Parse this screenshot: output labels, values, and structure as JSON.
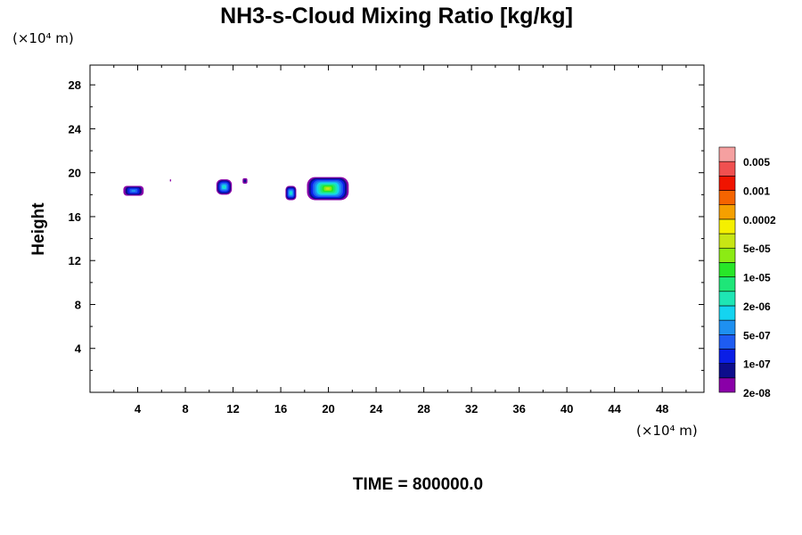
{
  "chart_data": {
    "type": "heatmap",
    "title": "NH3-s-Cloud Mixing Ratio [kg/kg]",
    "ylabel": "Height",
    "xlabel": "",
    "x_unit": "(×10⁴ m)",
    "y_unit": "(×10⁴ m)",
    "xlim": [
      0,
      51.5
    ],
    "ylim": [
      0,
      29.8
    ],
    "x_ticks": [
      4,
      8,
      12,
      16,
      20,
      24,
      28,
      32,
      36,
      40,
      44,
      48
    ],
    "y_ticks": [
      4,
      8,
      12,
      16,
      20,
      24,
      28
    ],
    "colorbar": {
      "labels": [
        "0.005",
        "0.001",
        "0.0002",
        "5e-05",
        "1e-05",
        "2e-06",
        "5e-07",
        "1e-07",
        "2e-08"
      ],
      "colors": [
        "#8a00a8",
        "#0d0d8c",
        "#0a1ee6",
        "#1e5cf2",
        "#1e90f0",
        "#14d4f0",
        "#1ee6b4",
        "#1ee678",
        "#28e628",
        "#8ceb14",
        "#c8e614",
        "#f5f000",
        "#f5a000",
        "#f56400",
        "#f01400",
        "#f05050",
        "#f5a0a0"
      ]
    },
    "regions": [
      {
        "x": [
          2.8,
          4.5
        ],
        "y": [
          17.9,
          18.8
        ],
        "level": 4
      },
      {
        "x": [
          6.7,
          6.8
        ],
        "y": [
          19.2,
          19.4
        ],
        "level": 0
      },
      {
        "x": [
          10.6,
          11.9
        ],
        "y": [
          18.0,
          19.4
        ],
        "level": 6
      },
      {
        "x": [
          12.8,
          13.2
        ],
        "y": [
          19.0,
          19.5
        ],
        "level": 1
      },
      {
        "x": [
          16.4,
          17.3
        ],
        "y": [
          17.5,
          18.8
        ],
        "level": 6
      },
      {
        "x": [
          18.2,
          21.7
        ],
        "y": [
          17.5,
          19.6
        ],
        "level": 10
      }
    ],
    "time_label": "TIME = 800000.0"
  }
}
